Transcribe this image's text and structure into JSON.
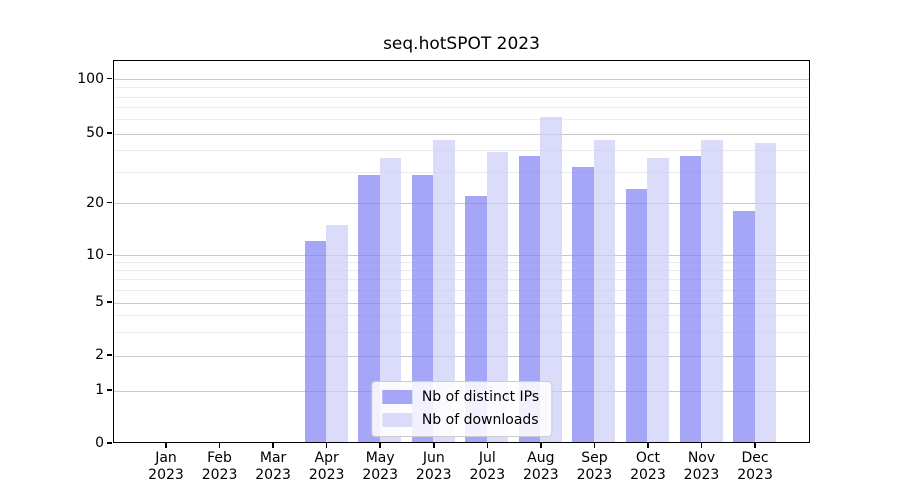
{
  "title": "seq.hotSPOT 2023",
  "chart_data": {
    "type": "bar",
    "title": "seq.hotSPOT 2023",
    "categories": [
      "Jan 2023",
      "Feb 2023",
      "Mar 2023",
      "Apr 2023",
      "May 2023",
      "Jun 2023",
      "Jul 2023",
      "Aug 2023",
      "Sep 2023",
      "Oct 2023",
      "Nov 2023",
      "Dec 2023"
    ],
    "series": [
      {
        "name": "Nb of distinct IPs",
        "key": "distinct-ips",
        "color": "rgba(128,128,245,0.7)",
        "values": [
          0,
          0,
          0,
          12,
          29,
          29,
          22,
          37,
          32,
          24,
          37,
          18
        ]
      },
      {
        "name": "Nb of downloads",
        "key": "downloads",
        "color": "rgba(204,204,248,0.7)",
        "values": [
          0,
          0,
          0,
          15,
          36,
          46,
          39,
          62,
          46,
          36,
          46,
          44
        ]
      }
    ],
    "yscale": "symlog",
    "ylim": [
      0,
      128
    ],
    "yticks": [
      0,
      1,
      2,
      5,
      10,
      20,
      50,
      100
    ],
    "yticks_minor": [
      3,
      4,
      6,
      7,
      8,
      9,
      30,
      40,
      60,
      70,
      80,
      90
    ],
    "grid": "on",
    "legend_position": "lower center",
    "xlabel": "",
    "ylabel": ""
  },
  "colors": {
    "background": "#ffffff",
    "axis": "#000000",
    "grid_major": "#c9c9c9",
    "grid_minor": "#ececec",
    "legend_border": "#cccccc",
    "text": "#000000"
  }
}
